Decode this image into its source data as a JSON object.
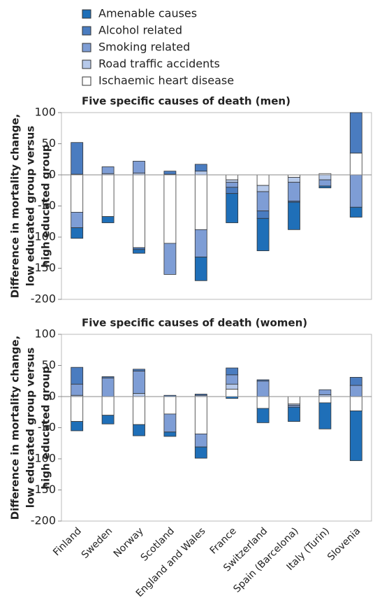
{
  "chart_data": [
    {
      "type": "bar",
      "title": "Five specific causes of death (men)",
      "y_label": [
        "Difference in mortality change,",
        "low educated group versus",
        "high educated group"
      ],
      "ylim": [
        -200,
        100
      ],
      "yticks": [
        -200,
        -150,
        -100,
        -50,
        0,
        50,
        100
      ],
      "series": [
        {
          "name": "Amenable causes",
          "color": "#1f6fb8",
          "values": [
            -17,
            -10,
            -6,
            0,
            -38,
            -47,
            -52,
            -44,
            -3,
            -16
          ]
        },
        {
          "name": "Alcohol related",
          "color": "#4a7cc0",
          "values": [
            51,
            0,
            -3,
            5,
            11,
            -10,
            -12,
            -2,
            0,
            65
          ]
        },
        {
          "name": "Smoking related",
          "color": "#7e9dd5",
          "values": [
            -25,
            11,
            19,
            -50,
            -44,
            -8,
            -31,
            -30,
            -10,
            -52
          ]
        },
        {
          "name": "Road traffic accidents",
          "color": "#b6c9ea",
          "values": [
            1,
            2,
            3,
            1,
            6,
            -4,
            -10,
            -8,
            -8,
            0
          ]
        },
        {
          "name": "Ischaemic heart disease",
          "color": "#ffffff",
          "values": [
            -60,
            -67,
            -117,
            -110,
            -88,
            -8,
            -17,
            -4,
            2,
            35
          ]
        }
      ]
    },
    {
      "type": "bar",
      "title": "Five specific causes of death (women)",
      "y_label": [
        "Difference in mortality change,",
        "low educated group versus",
        "high educated group"
      ],
      "ylim": [
        -200,
        100
      ],
      "yticks": [
        -200,
        -150,
        -100,
        -50,
        0,
        50,
        100
      ],
      "categories": [
        "Finland",
        "Sweden",
        "Norway",
        "Scotland",
        "England and Wales",
        "France",
        "Switzerland",
        "Spain (Barcelona)",
        "Italy (Turin)",
        "Slovenia"
      ],
      "series": [
        {
          "color": "#1f6fb8",
          "values": [
            -15,
            -14,
            -18,
            -7,
            -18,
            -3,
            -23,
            -23,
            -42,
            -80
          ]
        },
        {
          "color": "#4a7cc0",
          "values": [
            27,
            2,
            3,
            2,
            2,
            11,
            2,
            0,
            0,
            13
          ]
        },
        {
          "color": "#7e9dd5",
          "values": [
            18,
            30,
            36,
            -29,
            -21,
            15,
            25,
            -3,
            8,
            18
          ]
        },
        {
          "color": "#b6c9ea",
          "values": [
            2,
            0,
            5,
            0,
            2,
            8,
            0,
            -2,
            3,
            0
          ]
        },
        {
          "color": "#ffffff",
          "values": [
            -40,
            -30,
            -45,
            -28,
            -60,
            12,
            -19,
            -12,
            -10,
            -23
          ]
        }
      ]
    }
  ]
}
